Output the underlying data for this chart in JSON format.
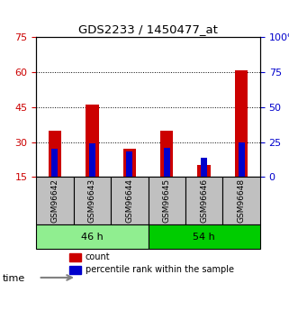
{
  "title": "GDS2233 / 1450477_at",
  "samples": [
    "GSM96642",
    "GSM96643",
    "GSM96644",
    "GSM96645",
    "GSM96646",
    "GSM96648"
  ],
  "groups": [
    {
      "label": "46 h",
      "indices": [
        0,
        1,
        2
      ],
      "color": "#90EE90"
    },
    {
      "label": "54 h",
      "indices": [
        3,
        4,
        5
      ],
      "color": "#00CC00"
    }
  ],
  "count_values": [
    35,
    46,
    27,
    35,
    20,
    61
  ],
  "percentile_values": [
    20,
    24,
    18,
    21,
    14,
    25
  ],
  "ylim_left": [
    15,
    75
  ],
  "ylim_right": [
    0,
    100
  ],
  "yticks_left": [
    15,
    30,
    45,
    60,
    75
  ],
  "yticks_right": [
    0,
    25,
    50,
    75,
    100
  ],
  "bar_width": 0.35,
  "count_color": "#CC0000",
  "percentile_color": "#0000CC",
  "bg_color_group1": "#C0C0C0",
  "bg_color_group2": "#C0C0C0",
  "time_label": "time",
  "legend_count": "count",
  "legend_percentile": "percentile rank within the sample"
}
